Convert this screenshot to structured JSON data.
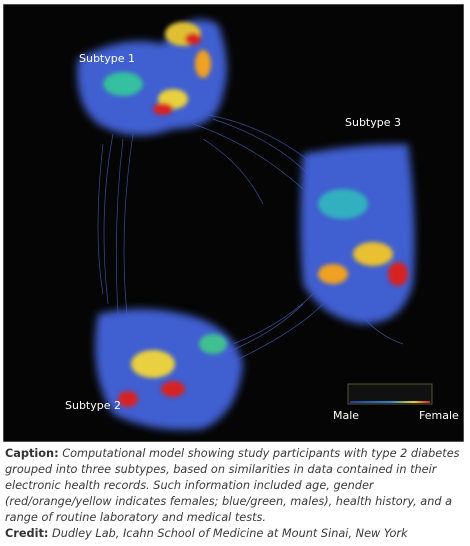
{
  "figure": {
    "labels": [
      "Subtype 1",
      "Subtype 3",
      "Subtype 2"
    ],
    "legend": {
      "left": "Male",
      "right": "Female"
    }
  },
  "caption": {
    "label": "Caption:",
    "text": "Computational model showing study participants with type 2 diabetes grouped into three subtypes, based on similarities in data contained in their electronic health records. Such information included age, gender (red/orange/yellow indicates females; blue/green, males), health history, and a range of routine laboratory and medical tests."
  },
  "credit": {
    "label": "Credit:",
    "text": "Dudley Lab, Icahn School of Medicine at Mount Sinai, New York"
  }
}
